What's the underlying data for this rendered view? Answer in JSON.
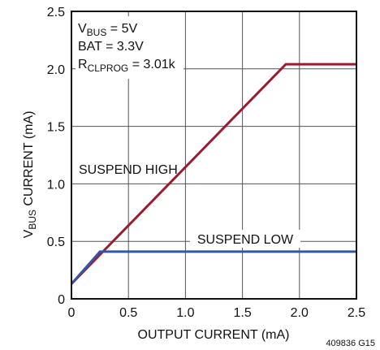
{
  "chart_data": {
    "type": "line",
    "xlabel": "OUTPUT CURRENT (mA)",
    "ylabel": {
      "prefix": "V",
      "sub": "BUS",
      "suffix": " CURRENT (mA)"
    },
    "xlim": [
      0,
      2.5
    ],
    "ylim": [
      0,
      2.5
    ],
    "x_ticks": [
      "0",
      "0.5",
      "1.0",
      "1.5",
      "2.0",
      "2.5"
    ],
    "y_ticks": [
      "0",
      "0.5",
      "1.0",
      "1.5",
      "2.0",
      "2.5"
    ],
    "grid": true,
    "series": [
      {
        "name": "SUSPEND HIGH",
        "color": "#9b1b30",
        "points": [
          [
            0,
            0.13
          ],
          [
            1.88,
            2.04
          ],
          [
            2.5,
            2.04
          ]
        ]
      },
      {
        "name": "SUSPEND LOW",
        "color": "#3556a5",
        "points": [
          [
            0,
            0.13
          ],
          [
            0.25,
            0.41
          ],
          [
            2.5,
            0.41
          ]
        ]
      }
    ],
    "annotations": [
      {
        "prefix": "V",
        "sub": "BUS",
        "suffix": " = 5V"
      },
      {
        "prefix": "BAT = 3.3V",
        "sub": "",
        "suffix": ""
      },
      {
        "prefix": "R",
        "sub": "CLPROG",
        "suffix": " = 3.01k"
      }
    ],
    "figure_id": "409836 G15"
  }
}
